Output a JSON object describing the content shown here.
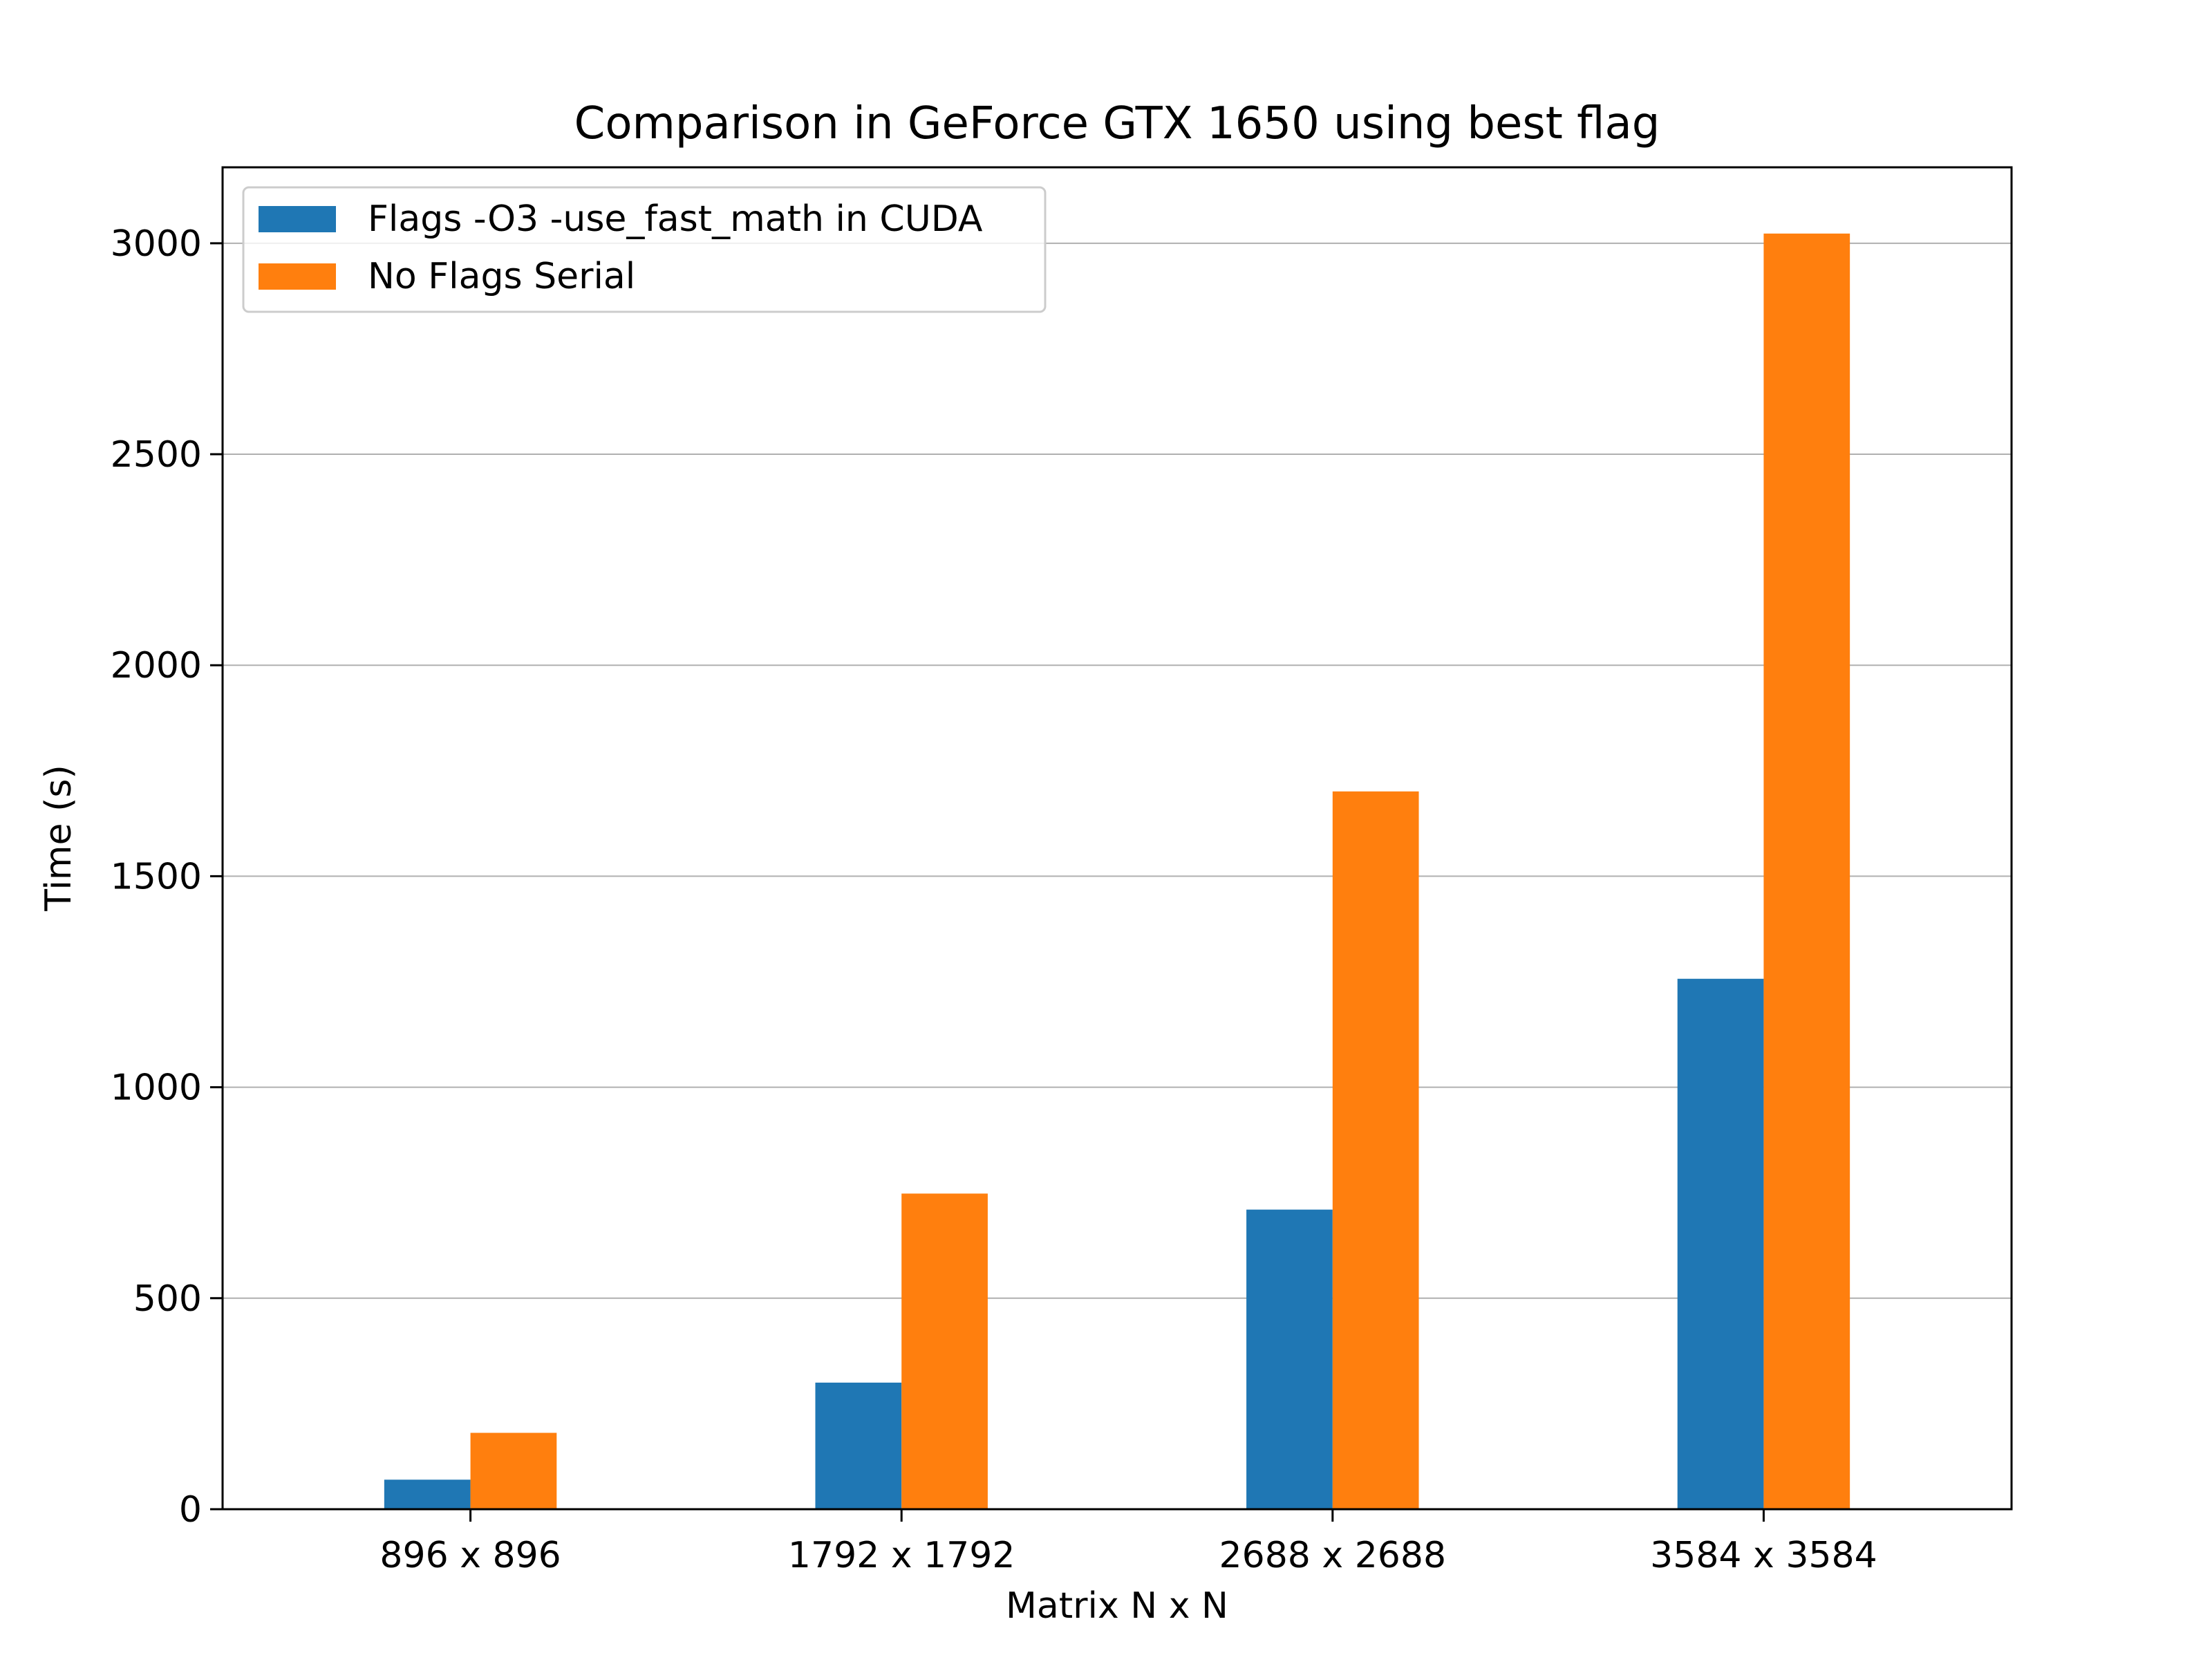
{
  "chart_data": {
    "type": "bar",
    "title": "Comparison in GeForce GTX 1650 using best flag",
    "xlabel": "Matrix N x N",
    "ylabel": "Time (s)",
    "categories": [
      "896 x 896",
      "1792 x 1792",
      "2688 x 2688",
      "3584 x 3584"
    ],
    "series": [
      {
        "name": "Flags -O3 -use_fast_math in CUDA",
        "color": "#1f77b4",
        "values": [
          70,
          300,
          710,
          1257
        ]
      },
      {
        "name": "No Flags Serial",
        "color": "#ff7f0e",
        "values": [
          181,
          748,
          1701,
          3023
        ]
      }
    ],
    "ylim": [
      0,
      3180
    ],
    "yticks": [
      0,
      500,
      1000,
      1500,
      2000,
      2500,
      3000
    ],
    "ytick_labels": [
      "0",
      "500",
      "1000",
      "1500",
      "2000",
      "2500",
      "3000"
    ],
    "grid": "y-axis horizontal gridlines",
    "legend_position": "top-left"
  }
}
